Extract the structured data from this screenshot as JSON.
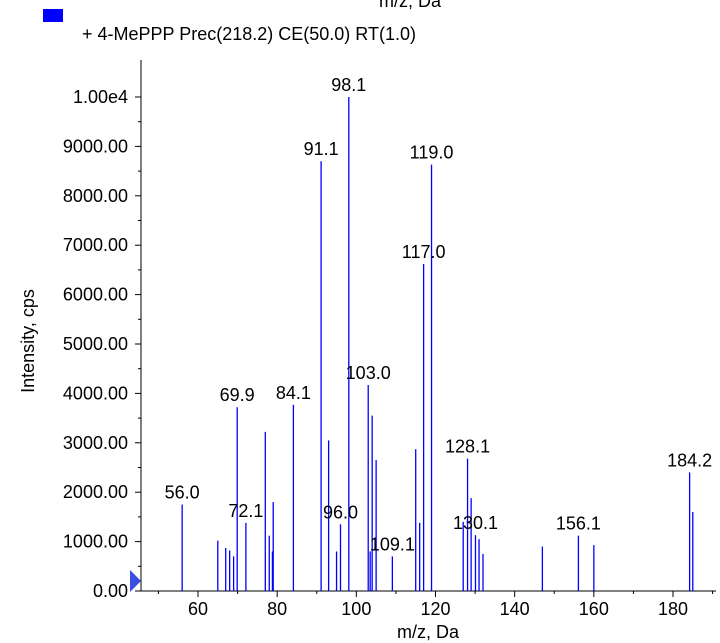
{
  "chart_data": {
    "type": "bar",
    "top_cut_label": "m/z, Da",
    "legend": {
      "entry": "+ 4-MePPP Prec(218.2) CE(50.0) RT(1.0)",
      "swatch_color": "#0000ff"
    },
    "xlabel": "m/z, Da",
    "ylabel": "Intensity, cps",
    "xlim": [
      43,
      190
    ],
    "ylim": [
      0,
      10000
    ],
    "x_ticks": [
      60,
      80,
      100,
      120,
      140,
      160,
      180
    ],
    "y_ticks": [
      {
        "value": 0,
        "label": "0.00"
      },
      {
        "value": 1000,
        "label": "1000.00"
      },
      {
        "value": 2000,
        "label": "2000.00"
      },
      {
        "value": 3000,
        "label": "3000.00"
      },
      {
        "value": 4000,
        "label": "4000.00"
      },
      {
        "value": 5000,
        "label": "5000.00"
      },
      {
        "value": 6000,
        "label": "6000.00"
      },
      {
        "value": 7000,
        "label": "7000.00"
      },
      {
        "value": 8000,
        "label": "8000.00"
      },
      {
        "value": 9000,
        "label": "9000.00"
      },
      {
        "value": 10000,
        "label": "1.00e4"
      }
    ],
    "line_color": "#0000ff",
    "peaks": [
      {
        "x": 56.0,
        "y": 1750,
        "label": "56.0"
      },
      {
        "x": 65.0,
        "y": 1020
      },
      {
        "x": 67.0,
        "y": 870
      },
      {
        "x": 68.0,
        "y": 820
      },
      {
        "x": 69.0,
        "y": 700
      },
      {
        "x": 69.9,
        "y": 3720,
        "label": "69.9"
      },
      {
        "x": 72.1,
        "y": 1380,
        "label": "72.1"
      },
      {
        "x": 77.0,
        "y": 3220
      },
      {
        "x": 78.0,
        "y": 1120
      },
      {
        "x": 78.8,
        "y": 800
      },
      {
        "x": 79.0,
        "y": 1800
      },
      {
        "x": 84.1,
        "y": 3770,
        "label": "84.1"
      },
      {
        "x": 91.1,
        "y": 8700,
        "label": "91.1"
      },
      {
        "x": 93.0,
        "y": 3050
      },
      {
        "x": 95.0,
        "y": 800
      },
      {
        "x": 96.0,
        "y": 1350,
        "label": "96.0"
      },
      {
        "x": 98.1,
        "y": 10000,
        "label": "98.1"
      },
      {
        "x": 103.0,
        "y": 4170,
        "label": "103.0"
      },
      {
        "x": 103.5,
        "y": 800
      },
      {
        "x": 104.0,
        "y": 3550
      },
      {
        "x": 105.0,
        "y": 2650
      },
      {
        "x": 109.1,
        "y": 700,
        "label": "109.1"
      },
      {
        "x": 115.0,
        "y": 2870
      },
      {
        "x": 116.0,
        "y": 1380
      },
      {
        "x": 117.0,
        "y": 6620,
        "label": "117.0"
      },
      {
        "x": 119.0,
        "y": 8630,
        "label": "119.0"
      },
      {
        "x": 127.0,
        "y": 1400
      },
      {
        "x": 128.1,
        "y": 2680,
        "label": "128.1"
      },
      {
        "x": 129.0,
        "y": 1880
      },
      {
        "x": 130.1,
        "y": 1130,
        "label": "130.1"
      },
      {
        "x": 131.0,
        "y": 1050
      },
      {
        "x": 132.0,
        "y": 750
      },
      {
        "x": 147.0,
        "y": 900
      },
      {
        "x": 156.1,
        "y": 1120,
        "label": "156.1"
      },
      {
        "x": 160.0,
        "y": 930
      },
      {
        "x": 184.2,
        "y": 2400,
        "label": "184.2"
      },
      {
        "x": 185.0,
        "y": 1600
      }
    ]
  }
}
